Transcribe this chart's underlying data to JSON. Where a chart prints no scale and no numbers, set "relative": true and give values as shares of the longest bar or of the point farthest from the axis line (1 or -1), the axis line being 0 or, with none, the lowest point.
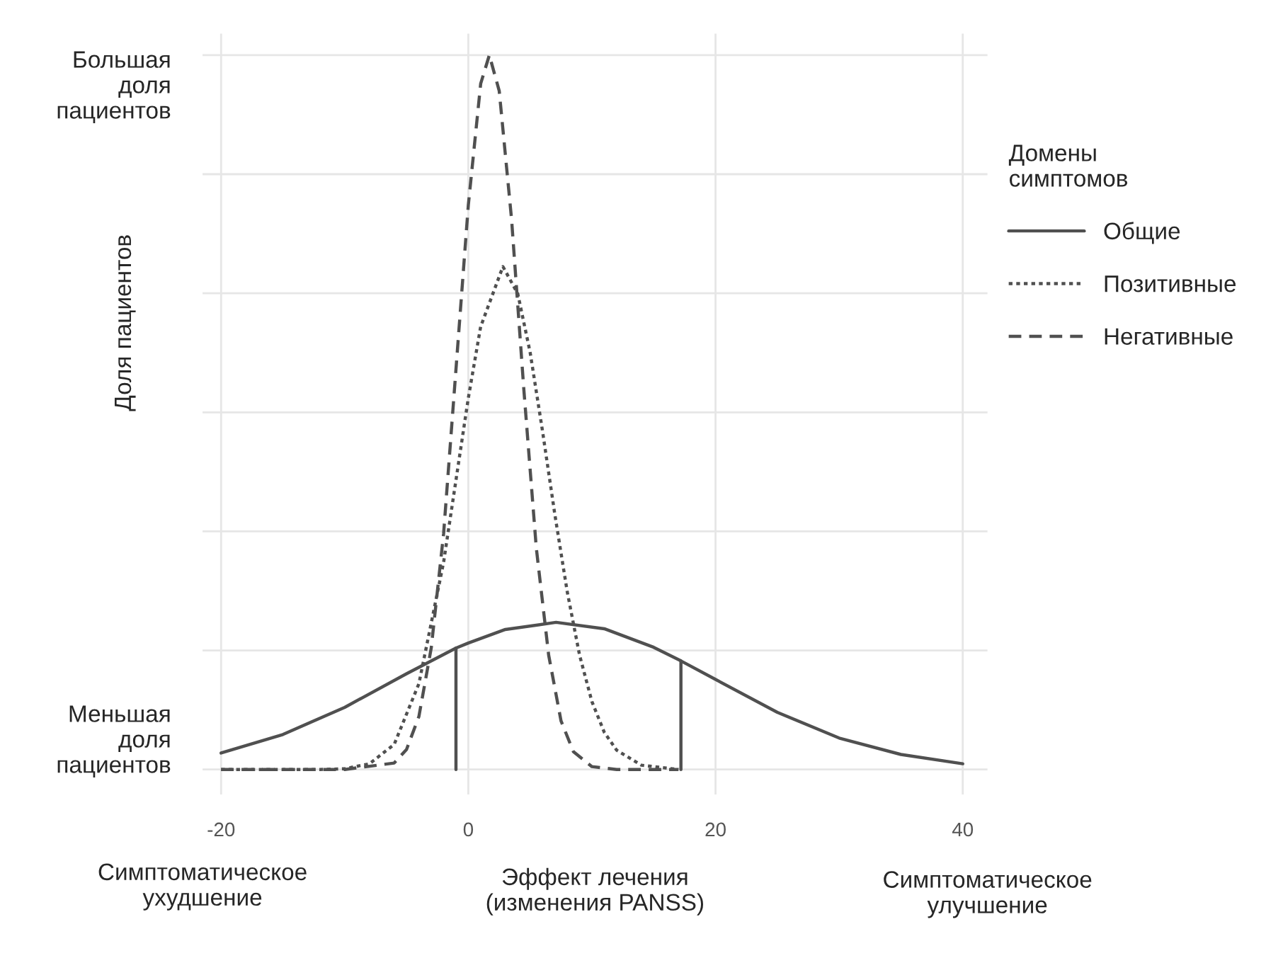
{
  "chart_data": {
    "type": "line",
    "relative": true,
    "xlabel": "Эффект лечения\n(изменения PANSS)",
    "ylabel": "Доля пациентов",
    "legend_title": "Домены\nсимптомов",
    "annotations": [
      "Большая\nдоля\nпациентов",
      "Меньшая\nдоля\nпациентов",
      "Симптоматическое\nухудшение",
      "Симптоматическое\nулучшение"
    ],
    "xlim": [
      -21.5,
      42
    ],
    "xticks": [
      -20,
      0,
      20,
      40
    ],
    "grid": true,
    "legend": "right",
    "marker": "none",
    "series": [
      {
        "name": "Общие",
        "color": "#505050",
        "line_style": "solid",
        "x": [
          -20,
          -15,
          -10,
          -5,
          -1,
          0,
          3,
          7.1,
          11,
          15,
          17.2,
          20,
          25,
          30,
          35,
          40
        ],
        "values": [
          0.023,
          0.049,
          0.087,
          0.134,
          0.17,
          0.177,
          0.196,
          0.206,
          0.197,
          0.171,
          0.152,
          0.126,
          0.08,
          0.044,
          0.021,
          0.008
        ]
      },
      {
        "name": "Позитивные",
        "color": "#505050",
        "line_style": "dotted",
        "x": [
          -20,
          -12,
          -10,
          -8,
          -6,
          -4,
          -2,
          0,
          1,
          2.8,
          4,
          5,
          6,
          7,
          8,
          9,
          10,
          11,
          12,
          14,
          17
        ],
        "values": [
          0,
          0,
          0.001,
          0.008,
          0.035,
          0.12,
          0.29,
          0.52,
          0.62,
          0.704,
          0.666,
          0.584,
          0.474,
          0.357,
          0.249,
          0.16,
          0.095,
          0.052,
          0.027,
          0.006,
          0
        ]
      },
      {
        "name": "Негативные",
        "color": "#505050",
        "line_style": "dashed",
        "x": [
          -20,
          -10,
          -6,
          -5,
          -4,
          -3,
          -2,
          -1,
          0,
          1,
          1.7,
          2.5,
          3.5,
          4.5,
          5.5,
          6.5,
          7.5,
          8.5,
          10,
          12,
          17
        ],
        "values": [
          0,
          0,
          0.009,
          0.028,
          0.074,
          0.17,
          0.33,
          0.56,
          0.79,
          0.96,
          1,
          0.95,
          0.77,
          0.53,
          0.31,
          0.16,
          0.068,
          0.025,
          0.004,
          0,
          0
        ]
      },
      {
        "color": "#505050",
        "line_style": "solid",
        "x": [
          -1,
          -1
        ],
        "values": [
          0,
          0.17
        ]
      },
      {
        "color": "#505050",
        "line_style": "solid",
        "x": [
          17.2,
          17.2
        ],
        "values": [
          0,
          0.152
        ]
      }
    ]
  }
}
